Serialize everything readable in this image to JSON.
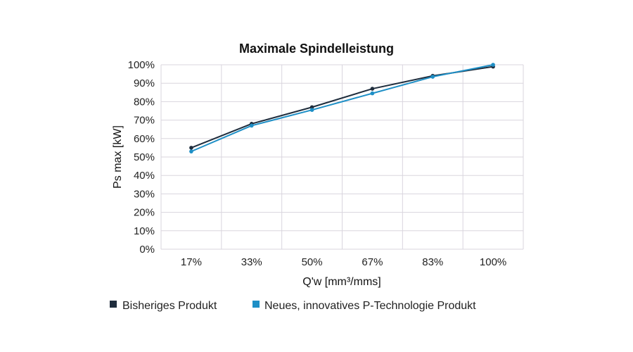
{
  "chart_data": {
    "type": "line",
    "title": "Maximale Spindelleistung",
    "xlabel": "Q'w [mm³/mms]",
    "ylabel": "Ps max [kW]",
    "categories": [
      "17%",
      "33%",
      "50%",
      "67%",
      "83%",
      "100%"
    ],
    "y_ticks": [
      "0%",
      "10%",
      "20%",
      "30%",
      "40%",
      "50%",
      "60%",
      "70%",
      "80%",
      "90%",
      "100%"
    ],
    "ylim": [
      0,
      100
    ],
    "grid": true,
    "legend_position": "bottom",
    "series": [
      {
        "name": "Bisheriges Produkt",
        "color": "#1f2d3d",
        "values": [
          55,
          68,
          77,
          87,
          94,
          99
        ]
      },
      {
        "name": "Neues, innovatives P-Technologie Produkt",
        "color": "#1e8fc6",
        "values": [
          53,
          67,
          75.5,
          84.5,
          93.5,
          100
        ]
      }
    ]
  }
}
